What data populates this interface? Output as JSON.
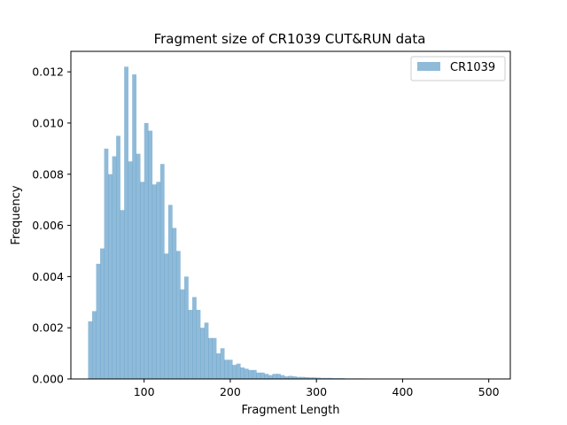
{
  "chart_data": {
    "type": "bar",
    "title": "Fragment size of CR1039 CUT&RUN data",
    "xlabel": "Fragment Length",
    "ylabel": "Frequency",
    "xlim": [
      15,
      525
    ],
    "ylim": [
      0,
      0.0128
    ],
    "xticks": [
      100,
      200,
      300,
      400,
      500
    ],
    "xtick_labels": [
      "100",
      "200",
      "300",
      "400",
      "500"
    ],
    "yticks": [
      0,
      0.002,
      0.004,
      0.006,
      0.008,
      0.01,
      0.012
    ],
    "ytick_labels": [
      "0.000",
      "0.002",
      "0.004",
      "0.006",
      "0.008",
      "0.010",
      "0.012"
    ],
    "legend_position": "top-right",
    "grid": false,
    "series": [
      {
        "name": "CR1039",
        "color": "#1f77b4",
        "opacity": 0.5,
        "bin_start": 35,
        "bin_width": 4.65,
        "values": [
          0.00225,
          0.00265,
          0.0045,
          0.0051,
          0.009,
          0.008,
          0.0087,
          0.0095,
          0.0066,
          0.0122,
          0.0085,
          0.0119,
          0.0088,
          0.0077,
          0.01,
          0.0097,
          0.0076,
          0.0077,
          0.0084,
          0.0049,
          0.0068,
          0.0059,
          0.005,
          0.0035,
          0.004,
          0.0027,
          0.0032,
          0.0027,
          0.002,
          0.0022,
          0.0016,
          0.0016,
          0.001,
          0.0012,
          0.00075,
          0.00075,
          0.00055,
          0.0006,
          0.00045,
          0.0004,
          0.00035,
          0.00035,
          0.00025,
          0.00025,
          0.0002,
          0.00015,
          0.0002,
          0.0002,
          0.00015,
          0.0001,
          0.00012,
          0.0001,
          8e-05,
          8e-05,
          7e-05,
          6e-05,
          6e-05,
          5e-05,
          4e-05,
          4e-05,
          4e-05,
          3e-05,
          3e-05,
          3e-05,
          2e-05,
          2e-05,
          2e-05,
          2e-05,
          2e-05,
          1e-05,
          1e-05,
          1e-05,
          1e-05,
          1e-05,
          1e-05,
          1e-05,
          1e-05,
          5e-06,
          5e-06,
          5e-06,
          5e-06,
          5e-06,
          5e-06,
          5e-06,
          5e-06,
          5e-06,
          5e-06,
          5e-06,
          5e-06,
          5e-06,
          5e-06,
          5e-06,
          5e-06,
          5e-06,
          5e-06,
          5e-06,
          5e-06,
          5e-06,
          5e-06,
          5e-06
        ]
      }
    ]
  }
}
